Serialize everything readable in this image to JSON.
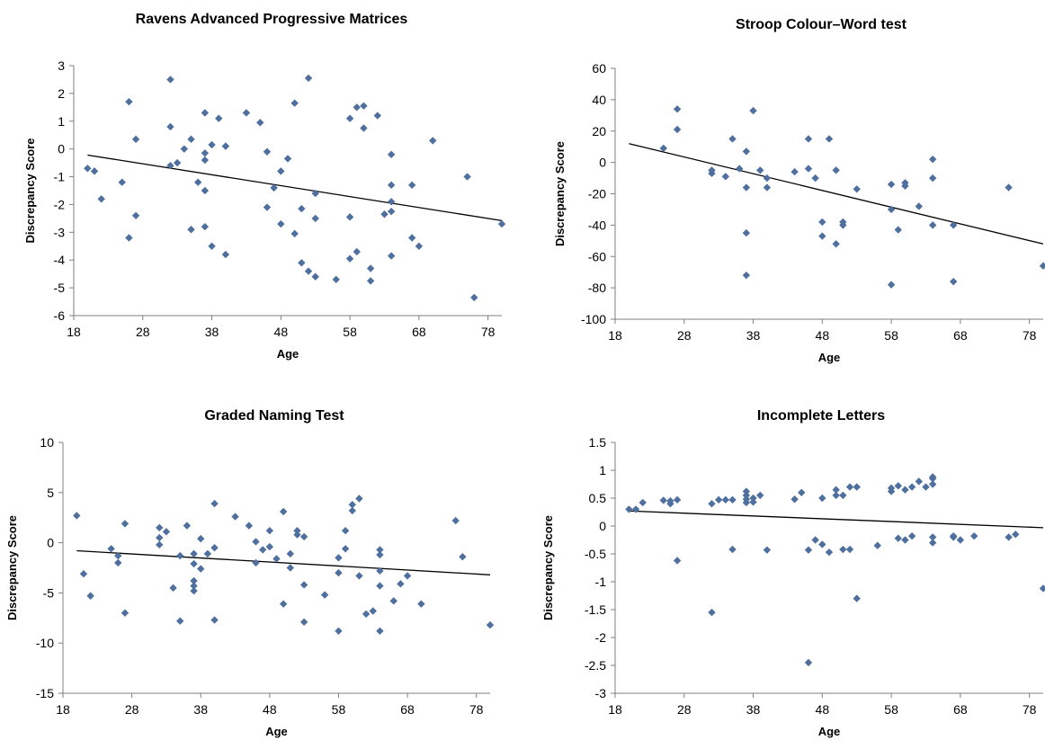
{
  "figure": {
    "point_color": "#4f6f9f",
    "trend_color": "#000000",
    "axis_color": "#7f7f7f"
  },
  "chart_data": [
    {
      "type": "scatter",
      "title": "Ravens Advanced Progressive Matrices",
      "xlabel": "Age",
      "ylabel": "Discrepancy Score",
      "xlim": [
        18,
        80
      ],
      "ylim": [
        -6,
        3
      ],
      "xticks": [
        "18",
        "28",
        "38",
        "48",
        "58",
        "68",
        "78"
      ],
      "yticks": [
        "3",
        "2",
        "1",
        "0",
        "-1",
        "-2",
        "-3",
        "-4",
        "-5",
        "-6"
      ],
      "trendline": {
        "x": [
          20,
          80
        ],
        "y": [
          -0.22,
          -2.58
        ]
      },
      "points": [
        [
          20,
          -0.7
        ],
        [
          21,
          -0.8
        ],
        [
          22,
          -1.8
        ],
        [
          25,
          -1.2
        ],
        [
          26,
          1.7
        ],
        [
          26,
          -3.2
        ],
        [
          27,
          0.35
        ],
        [
          27,
          -2.4
        ],
        [
          32,
          2.5
        ],
        [
          32,
          0.8
        ],
        [
          32,
          -0.6
        ],
        [
          33,
          -0.5
        ],
        [
          34,
          0
        ],
        [
          35,
          0.35
        ],
        [
          35,
          -2.9
        ],
        [
          36,
          -1.2
        ],
        [
          37,
          1.3
        ],
        [
          37,
          -0.15
        ],
        [
          37,
          -0.4
        ],
        [
          37,
          -1.5
        ],
        [
          37,
          -2.8
        ],
        [
          38,
          0.15
        ],
        [
          38,
          -3.5
        ],
        [
          39,
          1.1
        ],
        [
          40,
          0.1
        ],
        [
          40,
          0.1
        ],
        [
          40,
          -3.8
        ],
        [
          43,
          1.3
        ],
        [
          45,
          0.95
        ],
        [
          46,
          -0.1
        ],
        [
          46,
          -2.1
        ],
        [
          47,
          -1.4
        ],
        [
          48,
          -0.8
        ],
        [
          48,
          -2.7
        ],
        [
          49,
          -0.35
        ],
        [
          50,
          1.65
        ],
        [
          50,
          -3.05
        ],
        [
          51,
          -2.15
        ],
        [
          51,
          -4.1
        ],
        [
          52,
          2.55
        ],
        [
          52,
          -4.4
        ],
        [
          53,
          -1.6
        ],
        [
          53,
          -2.5
        ],
        [
          53,
          -4.6
        ],
        [
          56,
          -4.7
        ],
        [
          58,
          1.1
        ],
        [
          58,
          -2.45
        ],
        [
          58,
          -3.95
        ],
        [
          59,
          1.5
        ],
        [
          59,
          -3.7
        ],
        [
          60,
          1.55
        ],
        [
          60,
          0.75
        ],
        [
          61,
          -4.3
        ],
        [
          61,
          -4.75
        ],
        [
          62,
          1.2
        ],
        [
          63,
          -2.35
        ],
        [
          64,
          -0.2
        ],
        [
          64,
          -1.3
        ],
        [
          64,
          -1.9
        ],
        [
          64,
          -2.25
        ],
        [
          64,
          -3.85
        ],
        [
          67,
          -1.3
        ],
        [
          67,
          -3.2
        ],
        [
          68,
          -3.5
        ],
        [
          70,
          0.3
        ],
        [
          75,
          -1
        ],
        [
          76,
          -5.35
        ],
        [
          80,
          -2.7
        ]
      ]
    },
    {
      "type": "scatter",
      "title": "Stroop Colour–Word test",
      "xlabel": "Age",
      "ylabel": "Discrepancy Score",
      "xlim": [
        18,
        80
      ],
      "ylim": [
        -100,
        60
      ],
      "xticks": [
        "18",
        "28",
        "38",
        "48",
        "58",
        "68",
        "78"
      ],
      "yticks": [
        "60",
        "40",
        "20",
        "0",
        "-20",
        "-40",
        "-60",
        "-80",
        "-100"
      ],
      "trendline": {
        "x": [
          20,
          80
        ],
        "y": [
          12,
          -52
        ]
      },
      "points": [
        [
          25,
          9
        ],
        [
          27,
          34
        ],
        [
          27,
          21
        ],
        [
          32,
          -5
        ],
        [
          32,
          -7
        ],
        [
          34,
          -9
        ],
        [
          35,
          15
        ],
        [
          36,
          -4
        ],
        [
          37,
          7
        ],
        [
          37,
          -16
        ],
        [
          37,
          -45
        ],
        [
          37,
          -72
        ],
        [
          38,
          33
        ],
        [
          39,
          -5
        ],
        [
          40,
          -10
        ],
        [
          40,
          -16
        ],
        [
          44,
          -6
        ],
        [
          46,
          15
        ],
        [
          46,
          -4
        ],
        [
          47,
          -10
        ],
        [
          48,
          -38
        ],
        [
          48,
          -47
        ],
        [
          49,
          15
        ],
        [
          50,
          -5
        ],
        [
          50,
          -52
        ],
        [
          51,
          -38
        ],
        [
          51,
          -40
        ],
        [
          53,
          -17
        ],
        [
          58,
          -14
        ],
        [
          58,
          -30
        ],
        [
          58,
          -78
        ],
        [
          59,
          -43
        ],
        [
          60,
          -13
        ],
        [
          60,
          -15
        ],
        [
          62,
          -28
        ],
        [
          64,
          2
        ],
        [
          64,
          -10
        ],
        [
          64,
          -40
        ],
        [
          67,
          -40
        ],
        [
          67,
          -76
        ],
        [
          75,
          -16
        ],
        [
          80,
          -66
        ]
      ]
    },
    {
      "type": "scatter",
      "title": "Graded Naming Test",
      "xlabel": "Age",
      "ylabel": "Discrepancy Score",
      "xlim": [
        18,
        80
      ],
      "ylim": [
        -15,
        10
      ],
      "xticks": [
        "18",
        "28",
        "38",
        "48",
        "58",
        "68",
        "78"
      ],
      "yticks": [
        "10",
        "5",
        "0",
        "-5",
        "-10",
        "-15"
      ],
      "trendline": {
        "x": [
          20,
          80
        ],
        "y": [
          -0.8,
          -3.2
        ]
      },
      "points": [
        [
          20,
          2.7
        ],
        [
          21,
          -3.1
        ],
        [
          22,
          -5.3
        ],
        [
          25,
          -0.6
        ],
        [
          26,
          -1.3
        ],
        [
          26,
          -2
        ],
        [
          27,
          1.9
        ],
        [
          27,
          -7
        ],
        [
          32,
          1.5
        ],
        [
          32,
          0.5
        ],
        [
          32,
          -0.2
        ],
        [
          33,
          1.1
        ],
        [
          34,
          -4.5
        ],
        [
          35,
          -1.3
        ],
        [
          35,
          -7.8
        ],
        [
          36,
          1.7
        ],
        [
          37,
          -1.1
        ],
        [
          37,
          -2.1
        ],
        [
          37,
          -3.8
        ],
        [
          37,
          -4.3
        ],
        [
          37,
          -4.8
        ],
        [
          38,
          0.4
        ],
        [
          38,
          -2.6
        ],
        [
          39,
          -1.1
        ],
        [
          40,
          3.9
        ],
        [
          40,
          -0.5
        ],
        [
          40,
          -7.7
        ],
        [
          43,
          2.6
        ],
        [
          45,
          1.7
        ],
        [
          46,
          0.1
        ],
        [
          46,
          -2
        ],
        [
          47,
          -0.7
        ],
        [
          48,
          1.2
        ],
        [
          48,
          -0.4
        ],
        [
          49,
          -1.6
        ],
        [
          50,
          3.1
        ],
        [
          50,
          -6.1
        ],
        [
          51,
          -1.1
        ],
        [
          51,
          -2.5
        ],
        [
          52,
          1.2
        ],
        [
          52,
          0.8
        ],
        [
          53,
          0.6
        ],
        [
          53,
          -4.2
        ],
        [
          53,
          -7.9
        ],
        [
          56,
          -5.2
        ],
        [
          58,
          -1.5
        ],
        [
          58,
          -3
        ],
        [
          58,
          -8.8
        ],
        [
          59,
          1.2
        ],
        [
          59,
          -0.6
        ],
        [
          60,
          3.8
        ],
        [
          60,
          3.2
        ],
        [
          61,
          4.4
        ],
        [
          61,
          -3.3
        ],
        [
          62,
          -7.1
        ],
        [
          63,
          -6.8
        ],
        [
          64,
          -0.7
        ],
        [
          64,
          -1.2
        ],
        [
          64,
          -2.8
        ],
        [
          64,
          -4.3
        ],
        [
          64,
          -8.8
        ],
        [
          66,
          -5.8
        ],
        [
          67,
          -4.1
        ],
        [
          68,
          -3.3
        ],
        [
          70,
          -6.1
        ],
        [
          75,
          2.2
        ],
        [
          76,
          -1.4
        ],
        [
          80,
          -8.2
        ]
      ]
    },
    {
      "type": "scatter",
      "title": "Incomplete Letters",
      "xlabel": "Age",
      "ylabel": "Discrepancy Score",
      "xlim": [
        18,
        80
      ],
      "ylim": [
        -3,
        1.5
      ],
      "xticks": [
        "18",
        "28",
        "38",
        "48",
        "58",
        "68",
        "78"
      ],
      "yticks": [
        "1.5",
        "1",
        "0.5",
        "0",
        "-0.5",
        "-1",
        "-1.5",
        "-2",
        "-2.5",
        "-3"
      ],
      "trendline": {
        "x": [
          20,
          80
        ],
        "y": [
          0.27,
          -0.03
        ]
      },
      "points": [
        [
          20,
          0.3
        ],
        [
          21,
          0.3
        ],
        [
          22,
          0.42
        ],
        [
          25,
          0.46
        ],
        [
          26,
          0.4
        ],
        [
          26,
          0.45
        ],
        [
          27,
          0.47
        ],
        [
          27,
          -0.62
        ],
        [
          32,
          0.4
        ],
        [
          32,
          -1.55
        ],
        [
          33,
          0.47
        ],
        [
          34,
          0.47
        ],
        [
          35,
          0.47
        ],
        [
          35,
          -0.42
        ],
        [
          37,
          0.62
        ],
        [
          37,
          0.55
        ],
        [
          37,
          0.48
        ],
        [
          37,
          0.42
        ],
        [
          38,
          0.5
        ],
        [
          38,
          0.43
        ],
        [
          39,
          0.55
        ],
        [
          40,
          -0.43
        ],
        [
          44,
          0.48
        ],
        [
          45,
          0.6
        ],
        [
          46,
          -0.43
        ],
        [
          46,
          -2.45
        ],
        [
          47,
          -0.25
        ],
        [
          48,
          0.5
        ],
        [
          48,
          -0.33
        ],
        [
          49,
          -0.47
        ],
        [
          50,
          0.65
        ],
        [
          50,
          0.55
        ],
        [
          51,
          -0.42
        ],
        [
          51,
          0.55
        ],
        [
          52,
          0.7
        ],
        [
          52,
          -0.42
        ],
        [
          53,
          0.7
        ],
        [
          53,
          -1.3
        ],
        [
          56,
          -0.35
        ],
        [
          58,
          0.68
        ],
        [
          58,
          0.62
        ],
        [
          59,
          0.72
        ],
        [
          59,
          -0.22
        ],
        [
          60,
          0.65
        ],
        [
          60,
          -0.25
        ],
        [
          61,
          0.7
        ],
        [
          61,
          -0.18
        ],
        [
          62,
          0.8
        ],
        [
          63,
          0.7
        ],
        [
          64,
          0.88
        ],
        [
          64,
          0.85
        ],
        [
          64,
          0.75
        ],
        [
          64,
          -0.2
        ],
        [
          64,
          -0.3
        ],
        [
          67,
          -0.2
        ],
        [
          67,
          -0.18
        ],
        [
          68,
          -0.25
        ],
        [
          70,
          -0.18
        ],
        [
          75,
          -0.2
        ],
        [
          76,
          -0.15
        ],
        [
          80,
          -1.12
        ]
      ]
    }
  ]
}
